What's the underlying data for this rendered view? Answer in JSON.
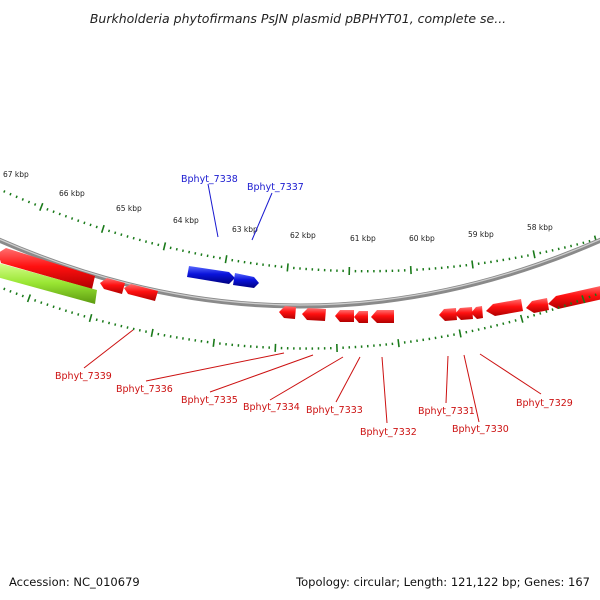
{
  "title": "Burkholderia phytofirmans PsJN plasmid pBPHYT01, complete se...",
  "footer": {
    "accession": "Accession: NC_010679",
    "summary": "Topology: circular; Length: 121,122 bp; Genes: 167"
  },
  "colors": {
    "forward_gene": "#0a14dc",
    "reverse_gene": "#ff0a14",
    "rna_feature": "#99e633",
    "tick": "#1a7a1a",
    "backbone": "#8a8a8a",
    "forward_label": "#1a1ad0",
    "reverse_label": "#cc1111"
  },
  "scale_labels": [
    "67 kbp",
    "66 kbp",
    "65 kbp",
    "64 kbp",
    "63 kbp",
    "62 kbp",
    "61 kbp",
    "60 kbp",
    "59 kbp",
    "58 kbp"
  ],
  "forward_labels": [
    "Bphyt_7338",
    "Bphyt_7337"
  ],
  "reverse_labels": [
    "Bphyt_7339",
    "Bphyt_7336",
    "Bphyt_7335",
    "Bphyt_7334",
    "Bphyt_7333",
    "Bphyt_7332",
    "Bphyt_7331",
    "Bphyt_7330",
    "Bphyt_7329"
  ]
}
